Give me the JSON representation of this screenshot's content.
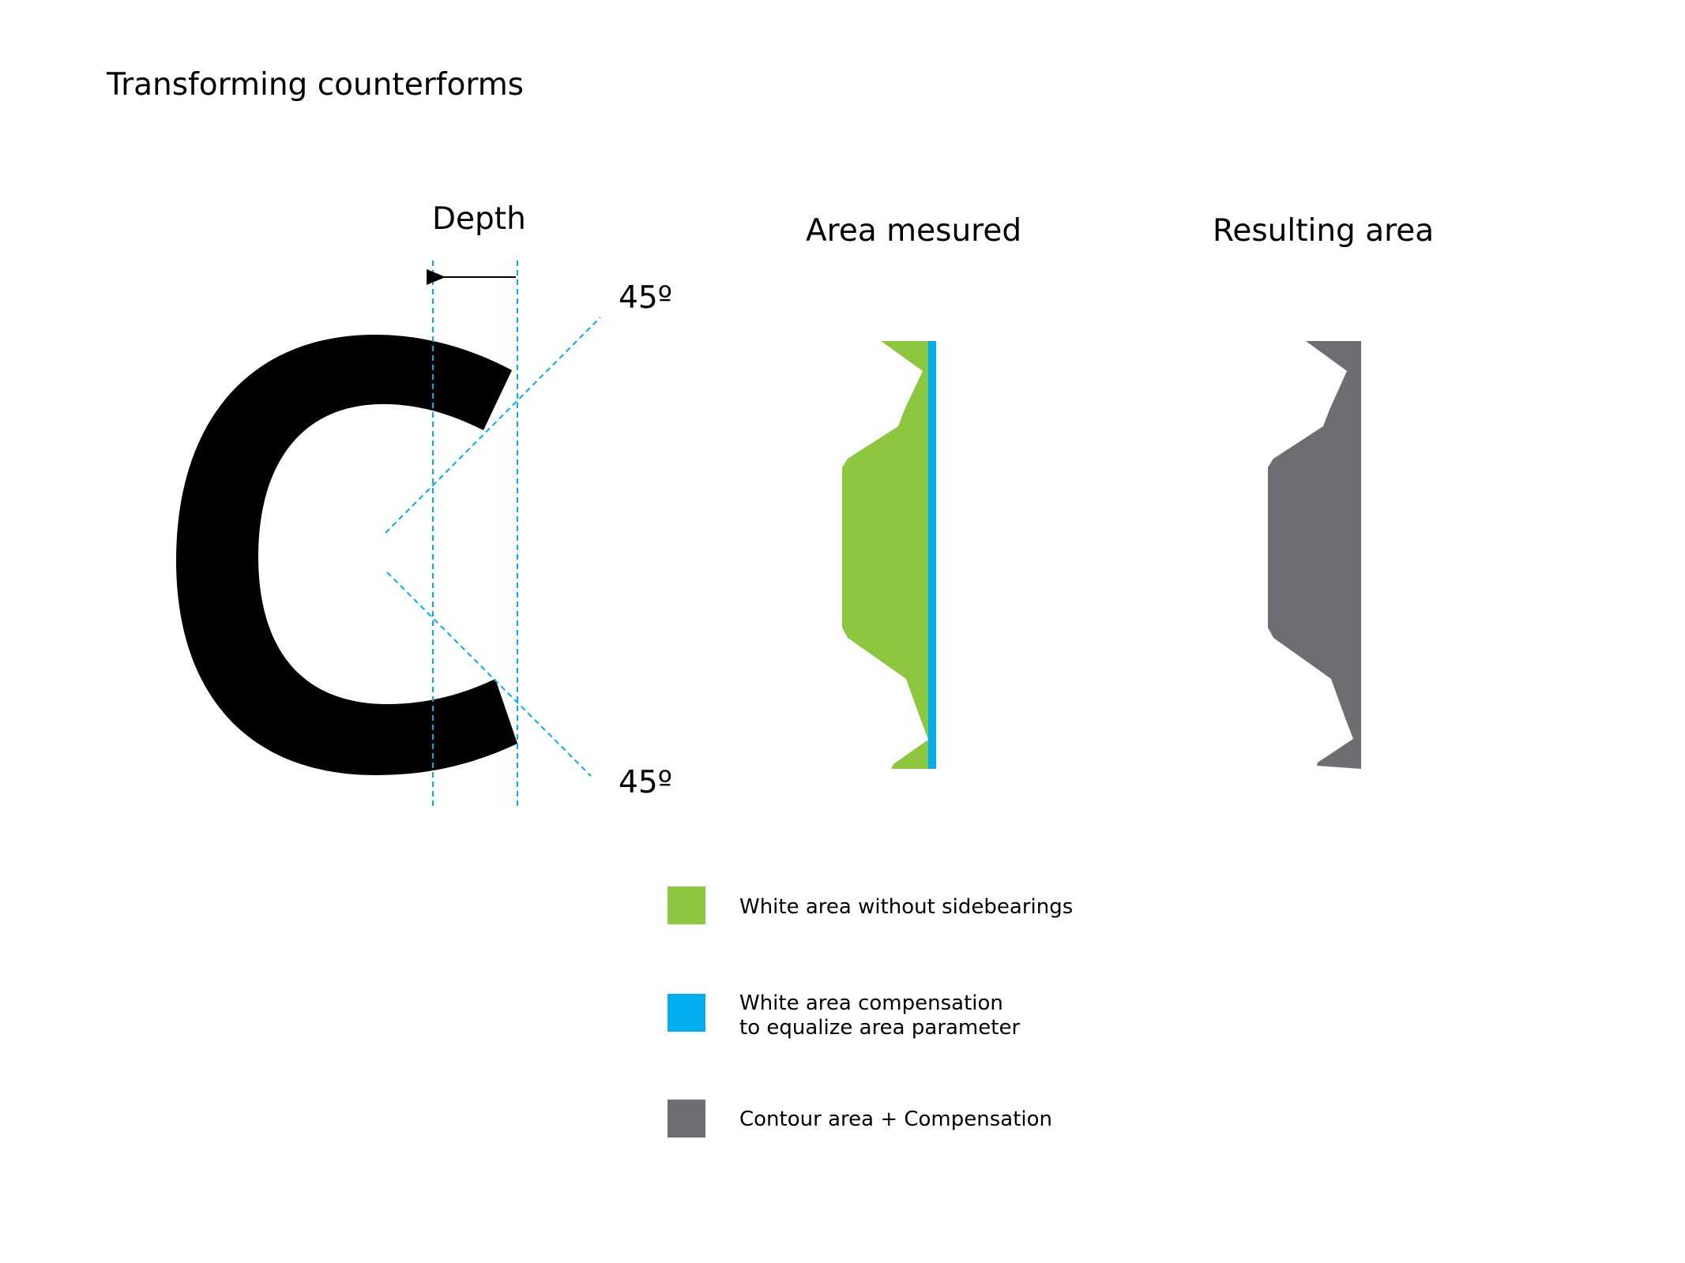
{
  "title": "Transforming counterforms",
  "labels": {
    "depth": "Depth",
    "angle_top": "45º",
    "angle_bottom": "45º",
    "area_measured": "Area mesured",
    "resulting_area": "Resulting area",
    "letter": "C"
  },
  "colors": {
    "green": "#8dc63f",
    "blue": "#00aeef",
    "gray": "#6d6e71",
    "guide": "#00aeef",
    "black": "#000000"
  },
  "legend": [
    {
      "color": "#8dc63f",
      "line1": "White area without sidebearings",
      "line2": ""
    },
    {
      "color": "#00aeef",
      "line1": "White area compensation",
      "line2": "to equalize area parameter"
    },
    {
      "color": "#6d6e71",
      "line1": "Contour area + Compensation",
      "line2": ""
    }
  ]
}
